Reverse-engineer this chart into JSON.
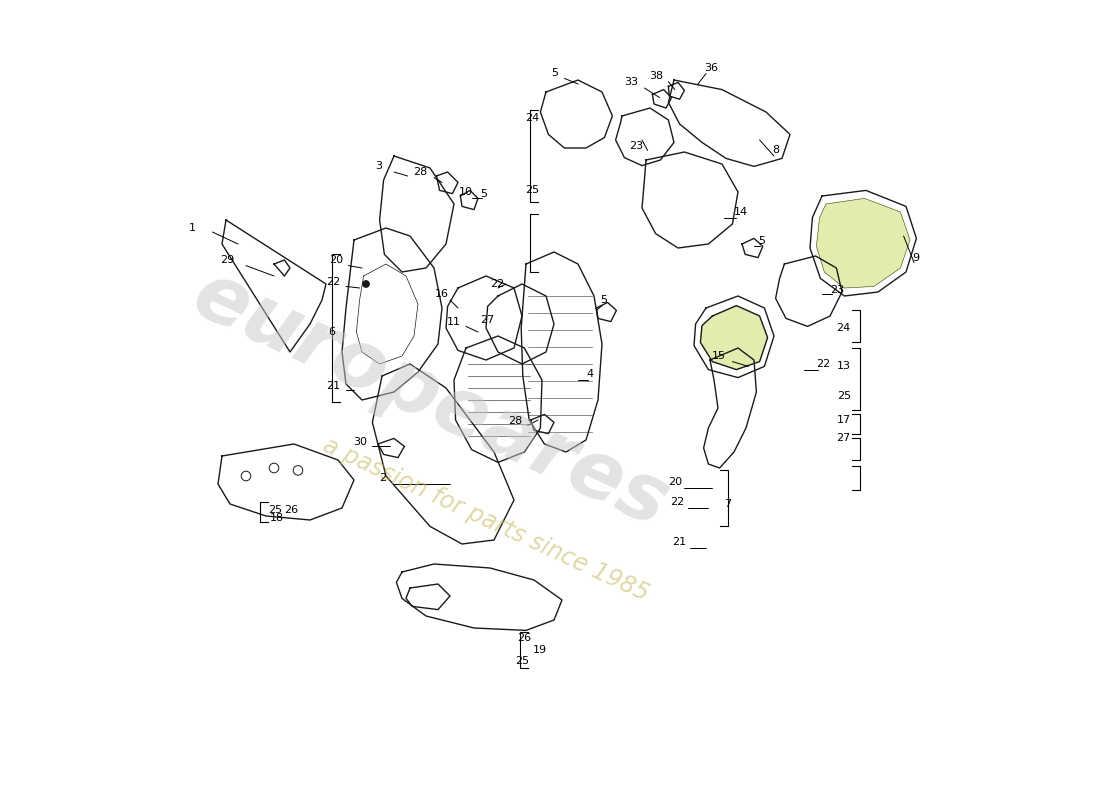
{
  "background_color": "#ffffff",
  "watermark_text1": "europeares",
  "watermark_text2": "a passion for parts since 1985",
  "watermark_color": "#c8c8c8",
  "watermark_yellow": "#c8b860",
  "parts_color": "#1a1a1a",
  "line_color": "#000000",
  "highlight_color": "#e8e8b0",
  "font_size": 8
}
